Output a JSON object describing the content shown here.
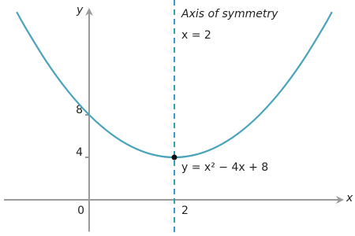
{
  "chart_data": {
    "type": "line",
    "x_label": "x",
    "y_label": "y",
    "annotations": [
      "Axis of symmetry",
      "x = 2"
    ],
    "equation": "y = x² − 4x + 8",
    "x": [
      -1.7,
      -1.5,
      -1,
      -0.5,
      0,
      0.5,
      1,
      1.5,
      2,
      2.5,
      3,
      3.5,
      4,
      4.5,
      5,
      5.5,
      5.7
    ],
    "series": [
      {
        "color": "#4aa3bd",
        "values": [
          17.69,
          16.25,
          13,
          10.25,
          8,
          6.25,
          5,
          4.25,
          4,
          4.25,
          5,
          6.25,
          8,
          10.25,
          13,
          16.25,
          17.69
        ]
      }
    ],
    "symmetry_x": 2,
    "symmetry_color": "#3a9bc0",
    "marker": {
      "x": 2,
      "y": 4
    },
    "xlim": [
      -2,
      6
    ],
    "ylim": [
      -3,
      18
    ],
    "xticks": [
      0,
      2
    ],
    "yticks": [
      4,
      8
    ]
  }
}
